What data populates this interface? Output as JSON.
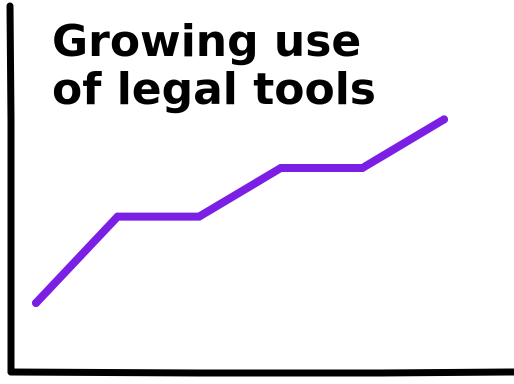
{
  "chart_data": {
    "type": "line",
    "title_lines": [
      "Growing use",
      "of legal tools"
    ],
    "xlabel": "",
    "ylabel": "",
    "grid": false,
    "legend": "none",
    "series": [
      {
        "color": "#7B1FE4",
        "points": [
          {
            "x": 0,
            "y": 1.0
          },
          {
            "x": 1,
            "y": 2.6
          },
          {
            "x": 2,
            "y": 2.6
          },
          {
            "x": 3,
            "y": 3.5
          },
          {
            "x": 4,
            "y": 3.5
          },
          {
            "x": 5,
            "y": 4.4
          }
        ]
      }
    ],
    "xlim": [
      0,
      5
    ],
    "ylim": [
      0,
      5
    ]
  },
  "colors": {
    "axis": "#000000",
    "line": "#7B1FE4",
    "background": "#ffffff"
  }
}
